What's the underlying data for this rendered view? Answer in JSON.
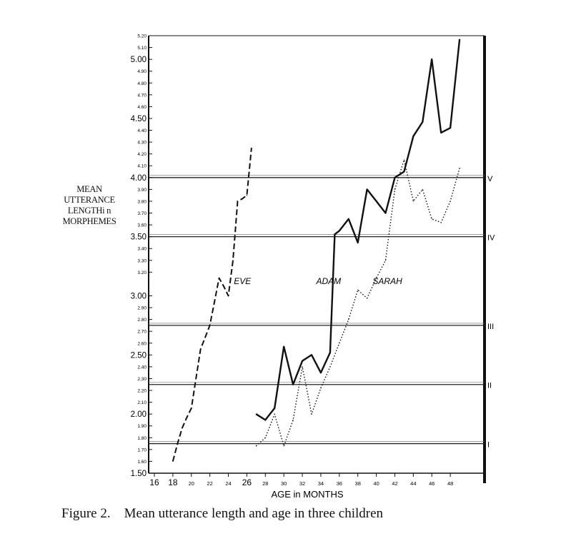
{
  "chart_data": {
    "type": "line",
    "ylabel_lines": [
      "MEAN",
      "UTTERANCE",
      "LENGTHi n",
      "MORPHEMES"
    ],
    "xlabel": "AGE in MONTHS",
    "caption": "Figure 2.    Mean utterance length and age in three children",
    "ylim": [
      1.5,
      5.2
    ],
    "xlim": [
      16,
      50
    ],
    "y_ticks": [
      {
        "v": 1.5,
        "label": "1.50"
      },
      {
        "v": 1.6,
        "label": "1.60"
      },
      {
        "v": 1.7,
        "label": "1.70"
      },
      {
        "v": 1.8,
        "label": "1.80"
      },
      {
        "v": 1.9,
        "label": "1.90"
      },
      {
        "v": 2.0,
        "label": "2.00"
      },
      {
        "v": 2.1,
        "label": "2.10"
      },
      {
        "v": 2.2,
        "label": "2.20"
      },
      {
        "v": 2.3,
        "label": "2.30"
      },
      {
        "v": 2.4,
        "label": "2.40"
      },
      {
        "v": 2.5,
        "label": "2.50"
      },
      {
        "v": 2.6,
        "label": "2.60"
      },
      {
        "v": 2.7,
        "label": "2.70"
      },
      {
        "v": 2.8,
        "label": "2.80"
      },
      {
        "v": 2.9,
        "label": "2.90"
      },
      {
        "v": 3.0,
        "label": "3.00"
      },
      {
        "v": 3.2,
        "label": "3.20"
      },
      {
        "v": 3.3,
        "label": "3.30"
      },
      {
        "v": 3.4,
        "label": "3.40"
      },
      {
        "v": 3.5,
        "label": "3.50"
      },
      {
        "v": 3.6,
        "label": "3.60"
      },
      {
        "v": 3.7,
        "label": "3.70"
      },
      {
        "v": 3.8,
        "label": "3.80"
      },
      {
        "v": 3.9,
        "label": "3.90"
      },
      {
        "v": 4.0,
        "label": "4.00"
      },
      {
        "v": 4.1,
        "label": "4.10"
      },
      {
        "v": 4.2,
        "label": "4.20"
      },
      {
        "v": 4.3,
        "label": "4.30"
      },
      {
        "v": 4.4,
        "label": "4.40"
      },
      {
        "v": 4.5,
        "label": "4.50"
      },
      {
        "v": 4.6,
        "label": "4.60"
      },
      {
        "v": 4.7,
        "label": "4.70"
      },
      {
        "v": 4.8,
        "label": "4.80"
      },
      {
        "v": 4.9,
        "label": "4.90"
      },
      {
        "v": 5.0,
        "label": "5.00"
      },
      {
        "v": 5.1,
        "label": "5.10"
      },
      {
        "v": 5.2,
        "label": "5.20"
      }
    ],
    "major_y": [
      1.5,
      2.0,
      2.5,
      3.0,
      3.5,
      4.0,
      4.5,
      5.0
    ],
    "x_ticks": [
      {
        "v": 16,
        "label": "16"
      },
      {
        "v": 18,
        "label": "18"
      },
      {
        "v": 20,
        "label": "20"
      },
      {
        "v": 22,
        "label": "22"
      },
      {
        "v": 24,
        "label": "24"
      },
      {
        "v": 26,
        "label": "26"
      },
      {
        "v": 28,
        "label": "28"
      },
      {
        "v": 30,
        "label": "30"
      },
      {
        "v": 32,
        "label": "32"
      },
      {
        "v": 34,
        "label": "34"
      },
      {
        "v": 36,
        "label": "36"
      },
      {
        "v": 38,
        "label": "38"
      },
      {
        "v": 40,
        "label": "40"
      },
      {
        "v": 42,
        "label": "42"
      },
      {
        "v": 44,
        "label": "44"
      },
      {
        "v": 46,
        "label": "46"
      },
      {
        "v": 48,
        "label": "48"
      }
    ],
    "stages": [
      {
        "y": 1.75,
        "label": "I"
      },
      {
        "y": 2.25,
        "label": "II"
      },
      {
        "y": 2.75,
        "label": "III"
      },
      {
        "y": 3.5,
        "label": "IV"
      },
      {
        "y": 4.0,
        "label": "V"
      }
    ],
    "series": [
      {
        "name": "EVE",
        "style": "dashed",
        "label_at": [
          24.6,
          3.1
        ],
        "x": [
          18,
          18.5,
          19,
          19.5,
          20,
          20.5,
          21,
          21.5,
          22,
          22.5,
          23,
          23.5,
          24,
          24.5,
          25,
          25.5,
          26,
          26.5
        ],
        "y": [
          1.6,
          1.75,
          1.88,
          1.97,
          2.05,
          2.3,
          2.55,
          2.65,
          2.75,
          2.95,
          3.15,
          3.08,
          3.0,
          3.3,
          3.8,
          3.82,
          3.85,
          4.25
        ]
      },
      {
        "name": "ADAM",
        "style": "solid",
        "label_at": [
          33.5,
          3.1
        ],
        "x": [
          27,
          28,
          29,
          30,
          31,
          32,
          33,
          34,
          35,
          35.5,
          36,
          37,
          38,
          39,
          40,
          41,
          42,
          43,
          44,
          45,
          46,
          47,
          48,
          49
        ],
        "y": [
          2.0,
          1.95,
          2.05,
          2.57,
          2.25,
          2.45,
          2.5,
          2.35,
          2.52,
          3.52,
          3.55,
          3.65,
          3.45,
          3.9,
          3.8,
          3.7,
          4.0,
          4.05,
          4.35,
          4.47,
          5.0,
          4.38,
          4.42,
          5.17
        ]
      },
      {
        "name": "SARAH",
        "style": "dotted",
        "label_at": [
          39.6,
          3.1
        ],
        "x": [
          27,
          28,
          29,
          30,
          31,
          32,
          33,
          34,
          35,
          36,
          37,
          38,
          39,
          40,
          41,
          42,
          43,
          44,
          45,
          46,
          47,
          48,
          49
        ],
        "y": [
          1.73,
          1.8,
          2.0,
          1.73,
          1.95,
          2.4,
          2.0,
          2.22,
          2.4,
          2.6,
          2.8,
          3.05,
          2.98,
          3.15,
          3.3,
          3.9,
          4.15,
          3.8,
          3.9,
          3.65,
          3.62,
          3.8,
          4.08
        ]
      }
    ]
  }
}
